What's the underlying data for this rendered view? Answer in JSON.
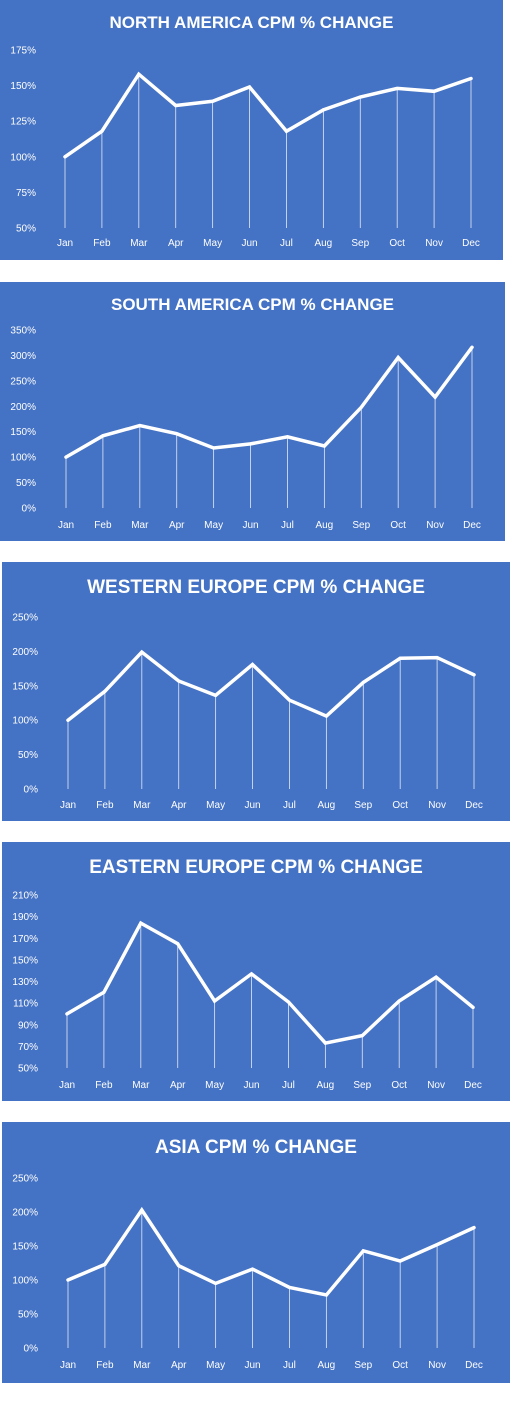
{
  "chart_data": [
    {
      "type": "line",
      "title": "NORTH AMERICA  CPM % CHANGE",
      "categories": [
        "Jan",
        "Feb",
        "Mar",
        "Apr",
        "May",
        "Jun",
        "Jul",
        "Aug",
        "Sep",
        "Oct",
        "Nov",
        "Dec"
      ],
      "series": [
        {
          "values": [
            100,
            118,
            158,
            136,
            139,
            149,
            118,
            133,
            142,
            148,
            146,
            155
          ]
        }
      ],
      "yticks": [
        "50%",
        "75%",
        "100%",
        "125%",
        "150%",
        "175%"
      ],
      "ylim": [
        50,
        175
      ],
      "grid": "vertical drop lines",
      "colors": {
        "background": "#4472c4",
        "line": "#ffffff"
      }
    },
    {
      "type": "line",
      "title": "SOUTH AMERICA  CPM % CHANGE",
      "categories": [
        "Jan",
        "Feb",
        "Mar",
        "Apr",
        "May",
        "Jun",
        "Jul",
        "Aug",
        "Sep",
        "Oct",
        "Nov",
        "Dec"
      ],
      "series": [
        {
          "values": [
            100,
            142,
            162,
            146,
            118,
            126,
            140,
            122,
            198,
            296,
            218,
            316
          ]
        }
      ],
      "yticks": [
        "0%",
        "50%",
        "100%",
        "150%",
        "200%",
        "250%",
        "300%",
        "350%"
      ],
      "ylim": [
        0,
        350
      ],
      "grid": "vertical drop lines",
      "colors": {
        "background": "#4472c4",
        "line": "#ffffff"
      }
    },
    {
      "type": "line",
      "title": "WESTERN EUROPE CPM % CHANGE",
      "categories": [
        "Jan",
        "Feb",
        "Mar",
        "Apr",
        "May",
        "Jun",
        "Jul",
        "Aug",
        "Sep",
        "Oct",
        "Nov",
        "Dec"
      ],
      "series": [
        {
          "values": [
            100,
            142,
            199,
            157,
            136,
            181,
            129,
            106,
            155,
            190,
            191,
            166
          ]
        }
      ],
      "yticks": [
        "0%",
        "50%",
        "100%",
        "150%",
        "200%",
        "250%"
      ],
      "ylim": [
        0,
        250
      ],
      "grid": "vertical drop lines",
      "colors": {
        "background": "#4472c4",
        "line": "#ffffff"
      }
    },
    {
      "type": "line",
      "title": "EASTERN EUROPE CPM % CHANGE",
      "categories": [
        "Jan",
        "Feb",
        "Mar",
        "Apr",
        "May",
        "Jun",
        "Jul",
        "Aug",
        "Sep",
        "Oct",
        "Nov",
        "Dec"
      ],
      "series": [
        {
          "values": [
            100,
            120,
            184,
            165,
            112,
            137,
            111,
            73,
            80,
            112,
            134,
            106
          ]
        }
      ],
      "yticks": [
        "50%",
        "70%",
        "90%",
        "110%",
        "130%",
        "150%",
        "170%",
        "190%",
        "210%"
      ],
      "ylim": [
        50,
        210
      ],
      "grid": "vertical drop lines",
      "colors": {
        "background": "#4472c4",
        "line": "#ffffff"
      }
    },
    {
      "type": "line",
      "title": "ASIA CPM % CHANGE",
      "categories": [
        "Jan",
        "Feb",
        "Mar",
        "Apr",
        "May",
        "Jun",
        "Jul",
        "Aug",
        "Sep",
        "Oct",
        "Nov",
        "Dec"
      ],
      "series": [
        {
          "values": [
            100,
            123,
            203,
            121,
            95,
            116,
            89,
            78,
            143,
            128,
            152,
            177
          ]
        }
      ],
      "yticks": [
        "0%",
        "50%",
        "100%",
        "150%",
        "200%",
        "250%"
      ],
      "ylim": [
        0,
        250
      ],
      "grid": "vertical drop lines",
      "colors": {
        "background": "#4472c4",
        "line": "#ffffff"
      }
    }
  ]
}
